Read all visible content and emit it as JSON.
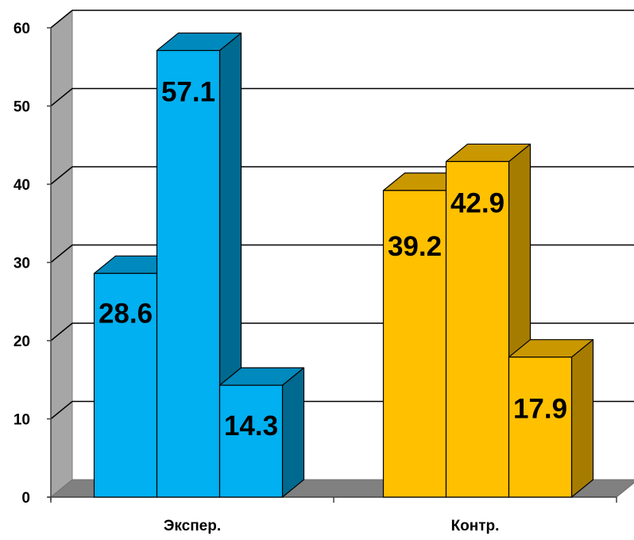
{
  "chart_data": {
    "type": "bar",
    "style": "3d-clustered",
    "categories": [
      "Экспер.",
      "Контр."
    ],
    "category_bars": [
      {
        "category": "Экспер.",
        "values": [
          28.6,
          57.1,
          14.3
        ],
        "labels": [
          "28.6",
          "57.1",
          "14.3"
        ]
      },
      {
        "category": "Контр.",
        "values": [
          39.2,
          42.9,
          17.9
        ],
        "labels": [
          "39.2",
          "42.9",
          "17.9"
        ]
      }
    ],
    "title": "",
    "xlabel": "",
    "ylabel": "",
    "ylim": [
      0,
      60
    ],
    "yticks": [
      "0",
      "10",
      "20",
      "30",
      "40",
      "50",
      "60"
    ],
    "grid": true,
    "legend": "none",
    "colors": {
      "Экспер.": {
        "front": "#00B0F0",
        "side": "#00698F",
        "top": "#0089BD"
      },
      "Контр.": {
        "front": "#FFC000",
        "side": "#A67C00",
        "top": "#C99700"
      },
      "wall": "#A6A6A6",
      "floor": "#808080",
      "gridline": "#000000"
    }
  }
}
